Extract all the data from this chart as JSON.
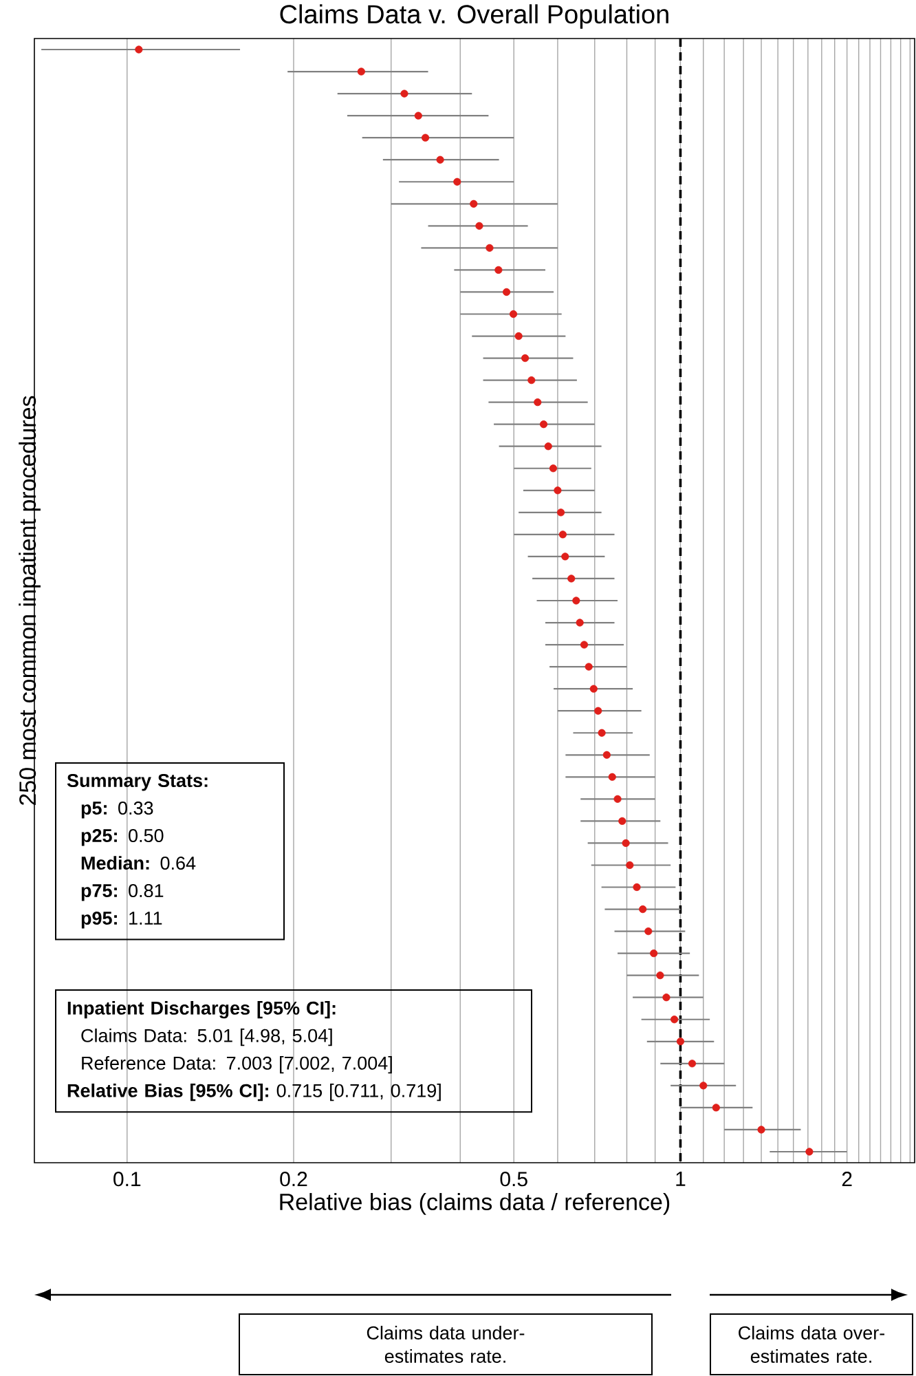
{
  "chart_data": {
    "type": "scatter",
    "orientation": "horizontal",
    "title": "Claims Data v. Overall Population",
    "xlabel": "Relative bias (claims data / reference)",
    "ylabel": "250 most common inpatient procedures",
    "categories": [
      null,
      null,
      null,
      null,
      null,
      null,
      null,
      null,
      null,
      null,
      null,
      null,
      null,
      null,
      null,
      null,
      null,
      null,
      null,
      null,
      null,
      null,
      null,
      null,
      null,
      null,
      null,
      null,
      null,
      null,
      null,
      null,
      null,
      null,
      null,
      null,
      null,
      null,
      null,
      null,
      null,
      null,
      null,
      null,
      null,
      null,
      null,
      null,
      null,
      null,
      null
    ],
    "values": [
      0.105,
      0.265,
      0.317,
      0.336,
      0.346,
      0.368,
      0.395,
      0.423,
      0.433,
      0.452,
      0.469,
      0.485,
      0.499,
      0.51,
      0.524,
      0.538,
      0.552,
      0.566,
      0.577,
      0.589,
      0.6,
      0.608,
      0.613,
      0.619,
      0.635,
      0.648,
      0.658,
      0.67,
      0.683,
      0.697,
      0.71,
      0.721,
      0.736,
      0.753,
      0.77,
      0.785,
      0.797,
      0.81,
      0.834,
      0.855,
      0.875,
      0.895,
      0.919,
      0.943,
      0.975,
      1.0,
      1.05,
      1.1,
      1.16,
      1.4,
      1.71
    ],
    "errors": [
      [
        0.07,
        0.16
      ],
      [
        0.195,
        0.35
      ],
      [
        0.24,
        0.42
      ],
      [
        0.25,
        0.45
      ],
      [
        0.266,
        0.5
      ],
      [
        0.29,
        0.47
      ],
      [
        0.31,
        0.5
      ],
      [
        0.3,
        0.6
      ],
      [
        0.35,
        0.53
      ],
      [
        0.34,
        0.6
      ],
      [
        0.39,
        0.57
      ],
      [
        0.4,
        0.59
      ],
      [
        0.4,
        0.61
      ],
      [
        0.42,
        0.62
      ],
      [
        0.44,
        0.64
      ],
      [
        0.44,
        0.65
      ],
      [
        0.45,
        0.68
      ],
      [
        0.46,
        0.7
      ],
      [
        0.47,
        0.72
      ],
      [
        0.5,
        0.69
      ],
      [
        0.52,
        0.7
      ],
      [
        0.51,
        0.72
      ],
      [
        0.5,
        0.76
      ],
      [
        0.53,
        0.73
      ],
      [
        0.54,
        0.76
      ],
      [
        0.55,
        0.77
      ],
      [
        0.57,
        0.76
      ],
      [
        0.57,
        0.79
      ],
      [
        0.58,
        0.8
      ],
      [
        0.59,
        0.82
      ],
      [
        0.6,
        0.85
      ],
      [
        0.64,
        0.82
      ],
      [
        0.62,
        0.88
      ],
      [
        0.62,
        0.9
      ],
      [
        0.66,
        0.9
      ],
      [
        0.66,
        0.92
      ],
      [
        0.68,
        0.95
      ],
      [
        0.69,
        0.96
      ],
      [
        0.72,
        0.98
      ],
      [
        0.73,
        1.0
      ],
      [
        0.76,
        1.02
      ],
      [
        0.77,
        1.04
      ],
      [
        0.8,
        1.08
      ],
      [
        0.82,
        1.1
      ],
      [
        0.85,
        1.13
      ],
      [
        0.87,
        1.15
      ],
      [
        0.92,
        1.2
      ],
      [
        0.96,
        1.26
      ],
      [
        1.0,
        1.35
      ],
      [
        1.2,
        1.65
      ],
      [
        1.45,
        2.0
      ]
    ],
    "color": "#e0201b",
    "xlim": [
      0.068,
      2.65
    ],
    "xticks": [
      0.1,
      0.2,
      {
        "value": 0.3,
        "label": null
      },
      {
        "value": 0.4,
        "label": null
      },
      0.5,
      {
        "value": 0.6,
        "label": null
      },
      {
        "value": 0.7,
        "label": null
      },
      {
        "value": 0.8,
        "label": null
      },
      {
        "value": 0.9,
        "label": null
      },
      1,
      {
        "value": 1.1,
        "label": null
      },
      {
        "value": 1.2,
        "label": null
      },
      {
        "value": 1.3,
        "label": null
      },
      {
        "value": 1.4,
        "label": null
      },
      {
        "value": 1.5,
        "label": null
      },
      {
        "value": 1.6,
        "label": null
      },
      {
        "value": 1.7,
        "label": null
      },
      {
        "value": 1.8,
        "label": null
      },
      {
        "value": 1.9,
        "label": null
      },
      2,
      {
        "value": 2.1,
        "label": null
      },
      {
        "value": 2.2,
        "label": null
      },
      {
        "value": 2.3,
        "label": null
      },
      {
        "value": 2.4,
        "label": null
      },
      {
        "value": 2.5,
        "label": null
      },
      {
        "value": 2.6,
        "label": null
      }
    ],
    "log": "x",
    "grid": "x",
    "marker": "circle",
    "tick_labels": "x",
    "ref_lines": [
      {
        "axis": "x",
        "value": 1,
        "color": "#000000",
        "line_style": "dashed"
      }
    ],
    "annotations": [
      "Summary Stats:",
      "**p5:** 0.33",
      "**p25:** 0.50",
      "**Median:** 0.64",
      "**p75:** 0.81",
      "**p95:** 1.11",
      "Inpatient Discharges [95% CI]:",
      "Claims Data: 5.01 [4.98, 5.04]",
      "Reference Data: 7.003 [7.002, 7.004]",
      "**Relative Bias [95% CI]:** 0.715 [0.711, 0.719]",
      "Claims data under-estimates rate.",
      "Claims data over-estimates rate."
    ]
  }
}
